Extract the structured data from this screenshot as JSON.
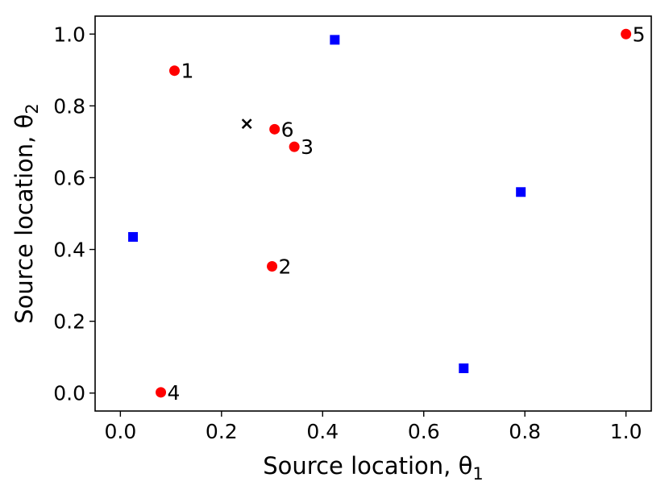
{
  "chart_data": {
    "type": "scatter",
    "xlabel": "Source location, θ",
    "xlabel_sub": "1",
    "ylabel": "Source location, θ",
    "ylabel_sub": "2",
    "xlim": [
      -0.05,
      1.05
    ],
    "ylim": [
      -0.05,
      1.05
    ],
    "xticks": [
      0.0,
      0.2,
      0.4,
      0.6,
      0.8,
      1.0
    ],
    "yticks": [
      0.0,
      0.2,
      0.4,
      0.6,
      0.8,
      1.0
    ],
    "xtick_labels": [
      "0.0",
      "0.2",
      "0.4",
      "0.6",
      "0.8",
      "1.0"
    ],
    "ytick_labels": [
      "0.0",
      "0.2",
      "0.4",
      "0.6",
      "0.8",
      "1.0"
    ],
    "grid": false,
    "series": [
      {
        "marker": "circle",
        "color": "#ff0000",
        "points": [
          {
            "x": 0.107,
            "y": 0.898,
            "label": "1"
          },
          {
            "x": 0.3,
            "y": 0.353,
            "label": "2"
          },
          {
            "x": 0.344,
            "y": 0.686,
            "label": "3"
          },
          {
            "x": 0.08,
            "y": 0.002,
            "label": "4"
          },
          {
            "x": 1.0,
            "y": 1.0,
            "label": "5"
          },
          {
            "x": 0.305,
            "y": 0.735,
            "label": "6"
          }
        ]
      },
      {
        "marker": "square",
        "color": "#0000ff",
        "points": [
          {
            "x": 0.025,
            "y": 0.435
          },
          {
            "x": 0.424,
            "y": 0.984
          },
          {
            "x": 0.792,
            "y": 0.56
          },
          {
            "x": 0.679,
            "y": 0.069
          }
        ]
      },
      {
        "marker": "x",
        "color": "#000000",
        "points": [
          {
            "x": 0.25,
            "y": 0.75
          }
        ]
      }
    ]
  }
}
